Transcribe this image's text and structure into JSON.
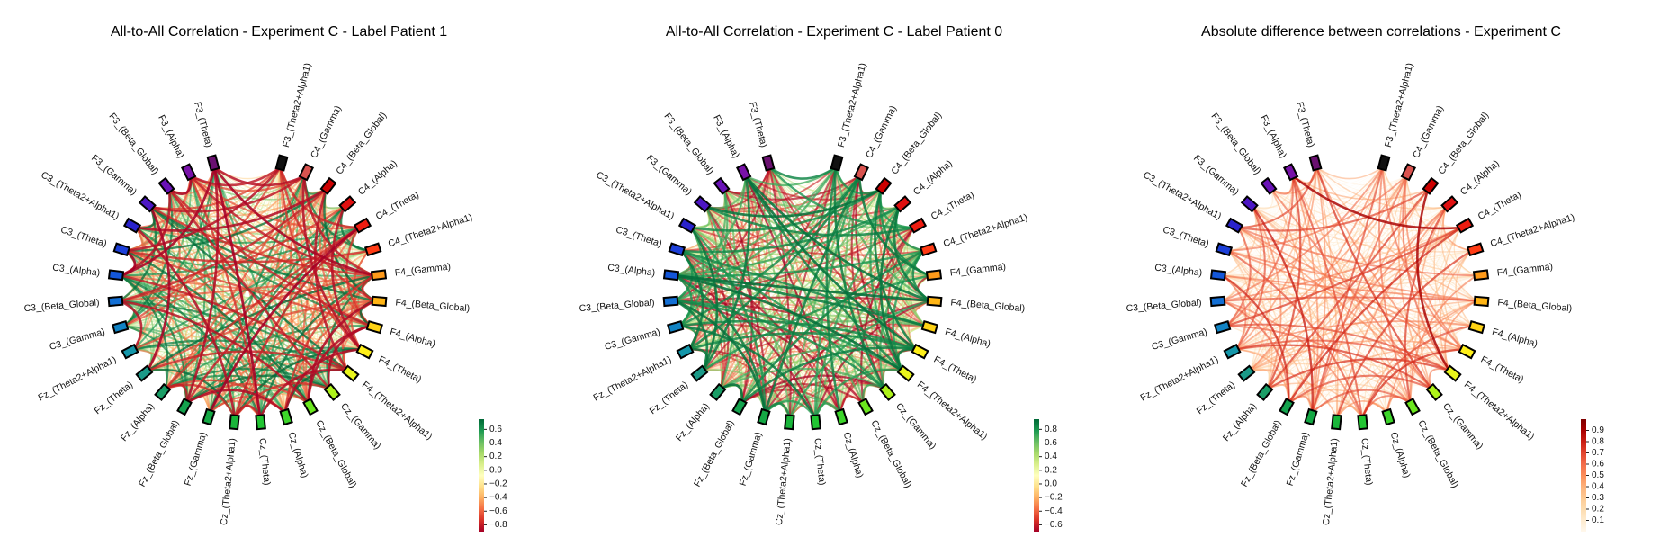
{
  "nodes": [
    {
      "label": "F3_(Theta2+Alpha1)",
      "color": "#111111"
    },
    {
      "label": "C4_(Gamma)",
      "color": "#d9534f"
    },
    {
      "label": "C4_(Beta_Global)",
      "color": "#cc0000"
    },
    {
      "label": "C4_(Alpha)",
      "color": "#e01010"
    },
    {
      "label": "C4_(Theta)",
      "color": "#ee1c10"
    },
    {
      "label": "C4_(Theta2+Alpha1)",
      "color": "#ff3b14"
    },
    {
      "label": "F4_(Gamma)",
      "color": "#ff9a1a"
    },
    {
      "label": "F4_(Beta_Global)",
      "color": "#ffb515"
    },
    {
      "label": "F4_(Alpha)",
      "color": "#ffd315"
    },
    {
      "label": "F4_(Theta)",
      "color": "#fff01a"
    },
    {
      "label": "F4_(Theta2+Alpha1)",
      "color": "#e9f51c"
    },
    {
      "label": "Cz_(Gamma)",
      "color": "#aef21a"
    },
    {
      "label": "Cz_(Beta_Global)",
      "color": "#6be71e"
    },
    {
      "label": "Cz_(Alpha)",
      "color": "#3cd52a"
    },
    {
      "label": "Cz_(Theta)",
      "color": "#22c533"
    },
    {
      "label": "Cz_(Theta2+Alpha1)",
      "color": "#19b53a"
    },
    {
      "label": "Fz_(Gamma)",
      "color": "#14a844"
    },
    {
      "label": "Fz_(Beta_Global)",
      "color": "#14a34e"
    },
    {
      "label": "Fz_(Alpha)",
      "color": "#1a9d66"
    },
    {
      "label": "Fz_(Theta)",
      "color": "#1b9a88"
    },
    {
      "label": "Fz_(Theta2+Alpha1)",
      "color": "#1496a9"
    },
    {
      "label": "C3_(Gamma)",
      "color": "#1183c4"
    },
    {
      "label": "C3_(Beta_Global)",
      "color": "#136fd4"
    },
    {
      "label": "C3_(Alpha)",
      "color": "#1356d9"
    },
    {
      "label": "C3_(Theta)",
      "color": "#1c3fd8"
    },
    {
      "label": "C3_(Theta2+Alpha1)",
      "color": "#2a22cc"
    },
    {
      "label": "F3_(Gamma)",
      "color": "#4d17c4"
    },
    {
      "label": "F3_(Beta_Global)",
      "color": "#6a12b8"
    },
    {
      "label": "F3_(Alpha)",
      "color": "#7812a8"
    },
    {
      "label": "F3_(Theta)",
      "color": "#6a1070"
    }
  ],
  "chart_data": [
    {
      "type": "chord",
      "title": "All-to-All Correlation - Experiment C - Label Patient 1",
      "colormap": "RdYlGn",
      "colorbar_ticks": [
        "0.6",
        "0.4",
        "0.2",
        "0.0",
        "−0.2",
        "−0.4",
        "−0.6",
        "−0.8"
      ],
      "colorbar_values": [
        0.6,
        0.4,
        0.2,
        0.0,
        -0.2,
        -0.4,
        -0.6,
        -0.8
      ],
      "colorbar_range": [
        -0.9,
        0.75
      ],
      "value_range": [
        -0.9,
        0.75
      ]
    },
    {
      "type": "chord",
      "title": "All-to-All Correlation - Experiment C - Label Patient 0",
      "colormap": "RdYlGn",
      "colorbar_ticks": [
        "0.8",
        "0.6",
        "0.4",
        "0.2",
        "0.0",
        "−0.2",
        "−0.4",
        "−0.6"
      ],
      "colorbar_values": [
        0.8,
        0.6,
        0.4,
        0.2,
        0.0,
        -0.2,
        -0.4,
        -0.6
      ],
      "colorbar_range": [
        -0.7,
        0.95
      ],
      "value_range": [
        -0.7,
        0.95
      ]
    },
    {
      "type": "chord",
      "title": "Absolute difference between correlations - Experiment C",
      "colormap": "OrRd",
      "colorbar_ticks": [
        "0.9",
        "0.8",
        "0.7",
        "0.6",
        "0.5",
        "0.4",
        "0.3",
        "0.2",
        "0.1"
      ],
      "colorbar_values": [
        0.9,
        0.8,
        0.7,
        0.6,
        0.5,
        0.4,
        0.3,
        0.2,
        0.1
      ],
      "colorbar_range": [
        0.0,
        1.0
      ],
      "value_range": [
        0.0,
        1.0
      ]
    }
  ]
}
